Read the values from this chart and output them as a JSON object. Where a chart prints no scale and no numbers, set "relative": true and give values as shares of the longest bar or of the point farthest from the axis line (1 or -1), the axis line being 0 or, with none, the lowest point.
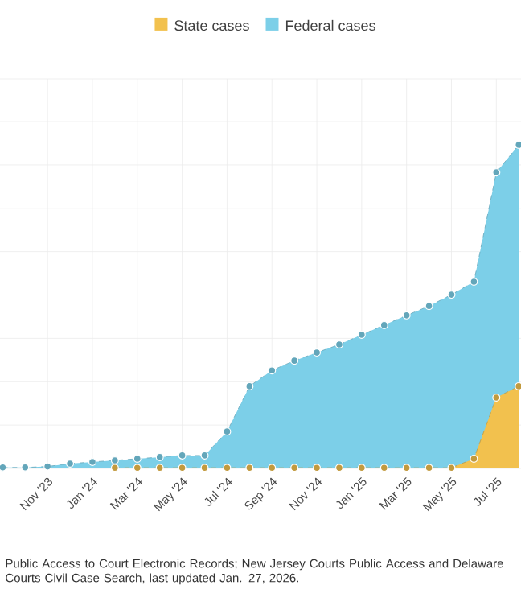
{
  "chart_data": {
    "type": "area",
    "relative": true,
    "grid": true,
    "legend": "top",
    "marker": "circle",
    "line_style": "dashed",
    "categories": [
      null,
      null,
      "Nov '23",
      null,
      "Jan '24",
      null,
      "Mar '24",
      null,
      "May '24",
      null,
      "Jul '24",
      null,
      "Sep '24",
      null,
      "Nov '24",
      null,
      "Jan '25",
      null,
      "Mar '25",
      null,
      "May '25",
      null,
      "Jul '25",
      null
    ],
    "series": [
      {
        "name": "State cases",
        "color": "#f2c14e",
        "values": [
          null,
          null,
          null,
          null,
          null,
          0.002,
          0.002,
          0.002,
          0.002,
          0.002,
          0.002,
          0.002,
          0.002,
          0.002,
          0.002,
          0.002,
          0.002,
          0.002,
          0.002,
          0.002,
          0.002,
          0.03,
          0.219,
          0.254
        ]
      },
      {
        "name": "Federal cases",
        "color": "#7ccfe8",
        "values": [
          0.003,
          0.003,
          0.006,
          0.015,
          0.02,
          0.025,
          0.03,
          0.035,
          0.04,
          0.04,
          0.114,
          0.254,
          0.303,
          0.333,
          0.358,
          0.383,
          0.413,
          0.443,
          0.473,
          0.502,
          0.537,
          0.577,
          0.915,
          1
        ]
      }
    ],
    "annotations": [
      "Public Access to Court Electronic Records; New Jersey Courts Public Access and Delaware Courts Civil Case Search, last updated Jan. 27, 2026."
    ]
  }
}
